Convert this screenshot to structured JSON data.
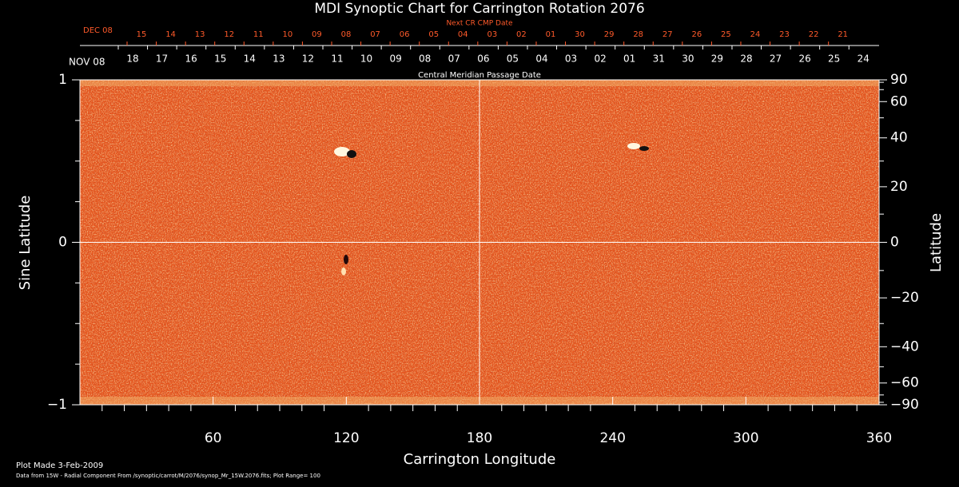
{
  "chart_data": {
    "type": "image",
    "title": "MDI Synoptic Chart for Carrington Rotation 2076",
    "x_label": "Carrington Longitude",
    "y_label": "Sine Latitude",
    "y2_label": "Latitude",
    "xlim": [
      0,
      360
    ],
    "xticks": [
      60,
      120,
      180,
      240,
      300,
      360
    ],
    "xminorticks": [
      10,
      20,
      30,
      40,
      50,
      70,
      80,
      90,
      100,
      110,
      130,
      140,
      150,
      160,
      170,
      190,
      200,
      210,
      220,
      230,
      250,
      260,
      270,
      280,
      290,
      310,
      320,
      330,
      340,
      350
    ],
    "ylim": [
      -1,
      1
    ],
    "yticks": [
      {
        "value": -1,
        "label": "−1"
      },
      0,
      1
    ],
    "yminorticks": [
      -0.75,
      -0.5,
      -0.25,
      0.25,
      0.5,
      0.75
    ],
    "y2lim": [
      -90,
      90
    ],
    "y2scale": "sine",
    "y2ticks": [
      90,
      60,
      40,
      20,
      0,
      {
        "value": -20,
        "label": "−20"
      },
      {
        "value": -40,
        "label": "−40"
      },
      {
        "value": -60,
        "label": "−60"
      },
      {
        "value": -90,
        "label": "−90"
      }
    ],
    "y2minorticks": [
      80,
      70,
      50,
      30,
      10,
      -10,
      -30,
      -50,
      -70,
      -80
    ],
    "grid": true,
    "cmp_axis": {
      "label": "Central Meridian Passage Date",
      "start": "NOV 08",
      "dates": [
        "18",
        "17",
        "16",
        "15",
        "14",
        "13",
        "12",
        "11",
        "10",
        "09",
        "08",
        "07",
        "06",
        "05",
        "04",
        "03",
        "02",
        "01",
        "31",
        "30",
        "29",
        "28",
        "27",
        "26",
        "25",
        "24"
      ]
    },
    "next_cmp_axis": {
      "label": "Next CR CMP Date",
      "start": "DEC 08",
      "dates": [
        "15",
        "14",
        "13",
        "12",
        "11",
        "10",
        "09",
        "08",
        "07",
        "06",
        "05",
        "04",
        "03",
        "02",
        "01",
        "30",
        "29",
        "28",
        "27",
        "26",
        "25",
        "24",
        "23",
        "22",
        "21"
      ]
    },
    "plot_made": "Plot Made  3-Feb-2009",
    "data_source": "Data from 15W - Radial Component From /synoptic/carrot/M/2076/synop_Mr_15W.2076.fits; Plot Range=  100"
  }
}
